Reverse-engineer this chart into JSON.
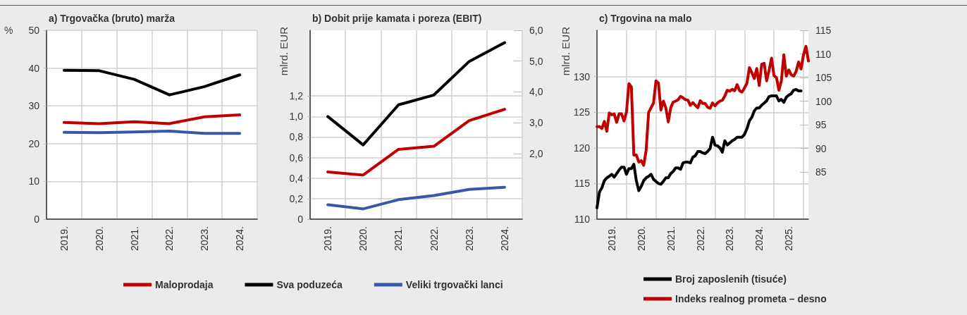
{
  "chart_data": [
    {
      "type": "line",
      "title": "a) Trgovačka (bruto) marža",
      "ylabel": "%",
      "categories": [
        "2019.",
        "2020.",
        "2021.",
        "2022.",
        "2023.",
        "2024."
      ],
      "series": [
        {
          "name": "Maloprodaja",
          "color": "#c00000",
          "values": [
            25.6,
            25.3,
            25.8,
            25.3,
            27.1,
            27.6
          ]
        },
        {
          "name": "Sva poduzeća",
          "color": "#000000",
          "values": [
            39.4,
            39.3,
            37.0,
            32.9,
            35.1,
            38.2
          ]
        },
        {
          "name": "Veliki trgovački lanci",
          "color": "#3a56a8",
          "values": [
            23.0,
            22.9,
            23.1,
            23.3,
            22.7,
            22.7
          ]
        }
      ],
      "ylim": [
        0,
        50
      ],
      "yticks": [
        0,
        10,
        20,
        30,
        40,
        50
      ],
      "grid": true,
      "legend": "bottom",
      "line_style": "solid",
      "marker": "none"
    },
    {
      "type": "line",
      "title": "b) Dobit prije kamata i poreza (EBIT)",
      "ylabel": "mlrd. EUR",
      "categories": [
        "2019.",
        "2020.",
        "2021.",
        "2022.",
        "2023.",
        "2024."
      ],
      "series": [
        {
          "color": "#c00000",
          "values": [
            0.46,
            0.43,
            0.68,
            0.71,
            0.96,
            1.07
          ]
        },
        {
          "color": "#000000",
          "axis": "y2",
          "values": [
            3.2,
            2.28,
            3.58,
            3.9,
            4.99,
            5.6
          ]
        },
        {
          "color": "#3a56a8",
          "values": [
            0.14,
            0.1,
            0.19,
            0.23,
            0.29,
            0.31
          ]
        }
      ],
      "ylim": [
        0,
        1.84
      ],
      "yticks": [
        0,
        {
          "value": 0.2,
          "label": "0,2"
        },
        {
          "value": 0.4,
          "label": "0,4"
        },
        {
          "value": 0.6,
          "label": "0,6"
        },
        {
          "value": 0.8,
          "label": "0,8"
        },
        {
          "value": 1.0,
          "label": "1,0"
        },
        {
          "value": 1.2,
          "label": "1,2"
        }
      ],
      "y2lim": [
        -0.13,
        6
      ],
      "y2ticks": [
        {
          "value": 2,
          "label": "2,0"
        },
        {
          "value": 3,
          "label": "3,0"
        },
        {
          "value": 4,
          "label": "4,0"
        },
        {
          "value": 5,
          "label": "5,0"
        },
        {
          "value": 6,
          "label": "6,0"
        }
      ],
      "grid": true,
      "line_style": "solid",
      "marker": "none"
    },
    {
      "type": "line",
      "title": "c) Trgovina na malo",
      "ylabel": "mlrd. EUR",
      "categories": [
        null,
        null,
        null,
        null,
        null,
        null,
        "2019.",
        null,
        null,
        null,
        null,
        null,
        null,
        null,
        null,
        null,
        null,
        null,
        "2020.",
        null,
        null,
        null,
        null,
        null,
        null,
        null,
        null,
        null,
        null,
        null,
        "2021.",
        null,
        null,
        null,
        null,
        null,
        null,
        null,
        null,
        null,
        null,
        null,
        "2022.",
        null,
        null,
        null,
        null,
        null,
        null,
        null,
        null,
        null,
        null,
        null,
        "2023.",
        null,
        null,
        null,
        null,
        null,
        null,
        null,
        null,
        null,
        null,
        null,
        "2024.",
        null,
        null,
        null,
        null,
        null,
        null,
        null,
        null,
        null,
        null,
        null,
        "2025.",
        null,
        null,
        null,
        null,
        null,
        null,
        null,
        null
      ],
      "series": [
        {
          "name": "Broj zaposlenih (tisuće)",
          "color": "#000000",
          "values": [
            111.6,
            113.8,
            114.4,
            115.4,
            115.8,
            116.0,
            116.3,
            115.9,
            116.4,
            116.9,
            117.3,
            117.3,
            116.3,
            117.1,
            117.1,
            117.7,
            115.4,
            114.0,
            114.6,
            115.4,
            115.8,
            116.0,
            116.3,
            115.6,
            115.3,
            115.0,
            114.9,
            115.3,
            115.8,
            115.8,
            116.4,
            116.7,
            117.2,
            117.2,
            117.0,
            117.9,
            118.0,
            118.0,
            117.9,
            118.7,
            118.9,
            119.5,
            119.5,
            119.3,
            119.2,
            119.5,
            119.9,
            121.5,
            120.4,
            120.3,
            120.0,
            119.4,
            121.0,
            120.4,
            120.7,
            121.0,
            121.2,
            121.5,
            121.5,
            121.5,
            121.9,
            122.7,
            123.8,
            124.3,
            125.2,
            125.6,
            125.6,
            126.0,
            126.3,
            126.6,
            127.2,
            127.3,
            127.3,
            127.3,
            126.6,
            126.8,
            126.4,
            127.1,
            127.4,
            127.6,
            128.1,
            128.2,
            128.0,
            128.0,
            null,
            null,
            null
          ]
        },
        {
          "name": "Indeks realnog prometa – desno",
          "color": "#c00000",
          "axis": "y2",
          "values": [
            94.6,
            94.6,
            94.2,
            95.7,
            93.6,
            97.5,
            97.1,
            97.3,
            95.5,
            97.3,
            97.3,
            95.8,
            97.7,
            103.7,
            103.0,
            88.6,
            88.6,
            87.1,
            87.4,
            86.4,
            89.6,
            97.6,
            98.6,
            99.6,
            104.3,
            103.8,
            98.1,
            100.0,
            98.6,
            95.6,
            98.6,
            99.8,
            100.0,
            100.3,
            101.0,
            100.7,
            100.3,
            100.2,
            99.1,
            99.7,
            99.1,
            98.6,
            100.1,
            99.5,
            99.5,
            98.7,
            98.5,
            99.6,
            99.0,
            99.6,
            100.0,
            100.2,
            101.1,
            102.3,
            102.1,
            102.5,
            102.2,
            103.5,
            102.2,
            101.9,
            102.8,
            103.8,
            107.1,
            106.0,
            104.8,
            106.9,
            103.3,
            107.8,
            108.0,
            104.3,
            106.5,
            109.1,
            105.4,
            105.0,
            102.3,
            104.3,
            109.8,
            105.3,
            106.6,
            105.6,
            105.3,
            106.3,
            108.3,
            106.8,
            109.8,
            111.6,
            108.5
          ]
        }
      ],
      "ylim": [
        110,
        136.5
      ],
      "yticks": [
        110,
        115,
        120,
        125,
        130
      ],
      "y2lim": [
        75,
        115
      ],
      "y2ticks": [
        85,
        90,
        95,
        100,
        105,
        110,
        115
      ],
      "grid": true,
      "legend": "bottom",
      "line_style": "solid",
      "marker": "none"
    }
  ]
}
